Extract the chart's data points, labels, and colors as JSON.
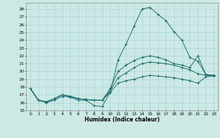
{
  "title": "",
  "xlabel": "Humidex (Indice chaleur)",
  "ylabel": "",
  "background_color": "#cce9e5",
  "grid_color": "#aad4cf",
  "line_color": "#1a6b6b",
  "xlim": [
    -0.5,
    23.5
  ],
  "ylim": [
    15,
    28.8
  ],
  "yticks": [
    15,
    16,
    17,
    18,
    19,
    20,
    21,
    22,
    23,
    24,
    25,
    26,
    27,
    28
  ],
  "xticks": [
    0,
    1,
    2,
    3,
    4,
    5,
    6,
    7,
    8,
    9,
    10,
    11,
    12,
    13,
    14,
    15,
    16,
    17,
    18,
    19,
    20,
    21,
    22,
    23
  ],
  "series": [
    {
      "x": [
        0,
        1,
        2,
        3,
        4,
        5,
        6,
        7,
        8,
        9,
        10,
        11,
        12,
        13,
        14,
        15,
        16,
        17,
        18,
        19,
        20,
        21,
        22,
        23
      ],
      "y": [
        17.8,
        16.3,
        16.0,
        16.3,
        16.8,
        16.7,
        16.3,
        16.3,
        15.6,
        15.5,
        17.3,
        21.5,
        23.5,
        25.8,
        28.0,
        28.2,
        27.3,
        26.5,
        25.1,
        24.0,
        21.8,
        21.3,
        19.6,
        19.5
      ]
    },
    {
      "x": [
        0,
        1,
        2,
        3,
        4,
        5,
        6,
        7,
        8,
        9,
        10,
        11,
        12,
        13,
        14,
        15,
        16,
        17,
        18,
        19,
        20,
        21,
        22,
        23
      ],
      "y": [
        17.8,
        16.3,
        16.1,
        16.5,
        17.0,
        16.8,
        16.5,
        16.4,
        16.3,
        16.3,
        17.8,
        20.0,
        20.8,
        21.4,
        21.8,
        22.0,
        21.8,
        21.5,
        21.0,
        20.8,
        20.5,
        22.0,
        19.6,
        19.5
      ]
    },
    {
      "x": [
        0,
        1,
        2,
        3,
        4,
        5,
        6,
        7,
        8,
        9,
        10,
        11,
        12,
        13,
        14,
        15,
        16,
        17,
        18,
        19,
        20,
        21,
        22,
        23
      ],
      "y": [
        17.8,
        16.3,
        16.1,
        16.5,
        17.0,
        16.8,
        16.5,
        16.4,
        16.3,
        16.3,
        17.5,
        19.2,
        19.8,
        20.5,
        21.0,
        21.2,
        21.1,
        21.0,
        20.8,
        20.5,
        20.2,
        19.7,
        19.5,
        19.4
      ]
    },
    {
      "x": [
        0,
        1,
        2,
        3,
        4,
        5,
        6,
        7,
        8,
        9,
        10,
        11,
        12,
        13,
        14,
        15,
        16,
        17,
        18,
        19,
        20,
        21,
        22,
        23
      ],
      "y": [
        17.8,
        16.3,
        16.1,
        16.5,
        17.0,
        16.8,
        16.5,
        16.4,
        16.3,
        16.3,
        17.3,
        18.5,
        18.8,
        19.0,
        19.3,
        19.5,
        19.4,
        19.3,
        19.2,
        19.0,
        18.8,
        18.5,
        19.3,
        19.4
      ]
    }
  ]
}
